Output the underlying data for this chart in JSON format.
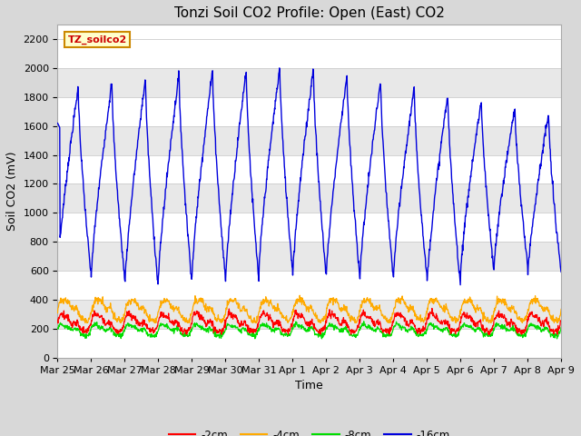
{
  "title": "Tonzi Soil CO2 Profile: Open (East) CO2",
  "ylabel": "Soil CO2 (mV)",
  "xlabel": "Time",
  "ylim": [
    0,
    2300
  ],
  "yticks": [
    0,
    200,
    400,
    600,
    800,
    1000,
    1200,
    1400,
    1600,
    1800,
    2000,
    2200
  ],
  "fig_bg_color": "#d8d8d8",
  "plot_bg_color": "#ffffff",
  "grid_color": "#cccccc",
  "stripe_color": "#e8e8e8",
  "xtick_labels": [
    "Mar 25",
    "Mar 26",
    "Mar 27",
    "Mar 28",
    "Mar 29",
    "Mar 30",
    "Mar 31",
    "Apr 1",
    "Apr 2",
    "Apr 3",
    "Apr 4",
    "Apr 5",
    "Apr 6",
    "Apr 7",
    "Apr 8",
    "Apr 9"
  ],
  "series_colors": {
    "m2cm": "#ff0000",
    "m4cm": "#ffaa00",
    "m8cm": "#00dd00",
    "m16cm": "#0000dd"
  },
  "series_labels": {
    "m2cm": "-2cm",
    "m4cm": "-4cm",
    "m8cm": "-8cm",
    "m16cm": "-16cm"
  },
  "legend_box_color": "#ffffcc",
  "legend_box_edge": "#cc8800",
  "legend_label_color": "#cc0000",
  "n_days": 15,
  "pts_per_day": 96,
  "title_fontsize": 11,
  "axis_label_fontsize": 9,
  "tick_fontsize": 8
}
